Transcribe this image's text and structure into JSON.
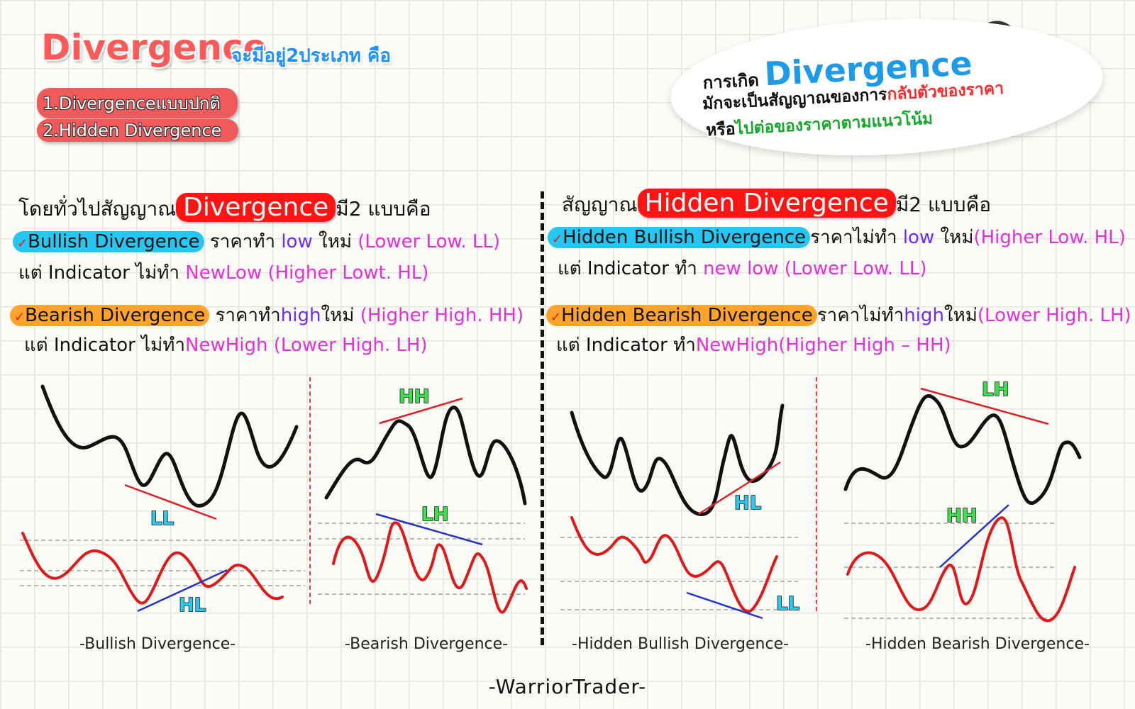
{
  "header": {
    "title": "Divergence",
    "subtitle": "จะมีอยู่2ประเภท คือ",
    "types": [
      "1.Divergenceแบบปกติ",
      "2.Hidden Divergence"
    ]
  },
  "note": {
    "line1_prefix": "การเกิด",
    "line1_word": "Divergence",
    "line2_prefix": "มักจะเป็นสัญญาณของการ",
    "line2_highlight": "กลับตัวของราคา",
    "line3_prefix": "หรือ",
    "line3_highlight": "ไปต่อของราคาตามแนวโน้ม"
  },
  "left": {
    "heading_prefix": "โดยทั่วไปสัญญาณ",
    "heading_highlight": "Divergence",
    "heading_suffix": "มี2 แบบคือ",
    "bullish": {
      "name": "Bullish Divergence",
      "price_text": "ราคาทำ",
      "price_key": "low",
      "price_new": "ใหม่",
      "price_note": "(Lower Low. LL)",
      "ind_text": "แต่ Indicator ไม่ทำ",
      "ind_note": "NewLow (Higher Lowt. HL)"
    },
    "bearish": {
      "name": "Bearish Divergence",
      "price_text": "ราคาทำ",
      "price_key": "high",
      "price_new": "ใหม่",
      "price_note": "(Higher High. HH)",
      "ind_text": "แต่ Indicator ไม่ทำ",
      "ind_note": "NewHigh (Lower High. LH)"
    }
  },
  "right": {
    "heading_prefix": "สัญญาณ",
    "heading_highlight": "Hidden Divergence",
    "heading_suffix": "มี2 แบบคือ",
    "bullish": {
      "name": "Hidden Bullish Divergence",
      "price_text": "ราคาไม่ทำ",
      "price_key": "low",
      "price_new": "ใหม่",
      "price_note": "(Higher Low. HL)",
      "ind_text": "แต่ Indicator ทำ",
      "ind_key": "new low",
      "ind_note": "(Lower Low. LL)"
    },
    "bearish": {
      "name": "Hidden Bearish Divergence",
      "price_text": "ราคาไม่ทำ",
      "price_key": "high",
      "price_new": "ใหม่",
      "price_note": "(Lower High. LH)",
      "ind_text": "แต่ Indicator ทำ",
      "ind_note": "NewHigh(Higher High – HH)"
    }
  },
  "diagrams": [
    {
      "caption": "-Bullish Divergence-",
      "price_label": "LL",
      "ind_label": "HL"
    },
    {
      "caption": "-Bearish Divergence-",
      "price_label": "HH",
      "ind_label": "LH"
    },
    {
      "caption": "-Hidden Bullish Divergence-",
      "price_label": "HL",
      "ind_label": "LL"
    },
    {
      "caption": "-Hidden Bearish Divergence-",
      "price_label": "LH",
      "ind_label": "HH"
    }
  ],
  "label_colors": {
    "LL": "#2ec8ec",
    "HL": "#2ec8ec",
    "HH": "#3be04a",
    "LH": "#3be04a"
  },
  "footer": "-WarriorTrader-"
}
